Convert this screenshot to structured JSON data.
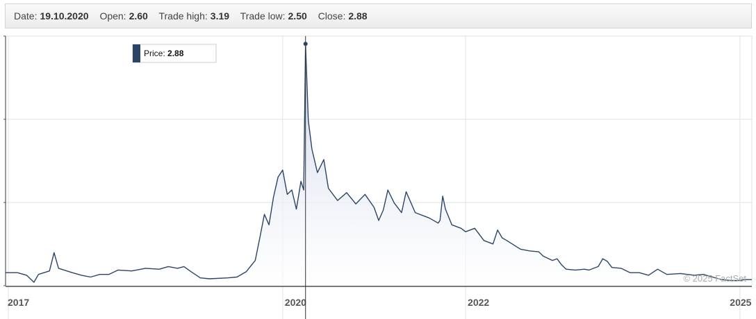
{
  "header": {
    "date_label": "Date:",
    "date_value": "19.10.2020",
    "open_label": "Open:",
    "open_value": "2.60",
    "high_label": "Trade high:",
    "high_value": "3.19",
    "low_label": "Trade low:",
    "low_value": "2.50",
    "close_label": "Close:",
    "close_value": "2.88"
  },
  "tooltip": {
    "label": "Price:",
    "value": "2.88"
  },
  "credit": "© 2025 FactSet",
  "colors": {
    "line": "#2b4466",
    "fill_top": "#c9d3e8",
    "fill_bottom": "#ffffff",
    "tooltip_swatch": "#2b4466",
    "grid": "#e2e2e2"
  },
  "chart_data": {
    "type": "area",
    "title": "",
    "xlabel": "",
    "ylabel": "",
    "x_ticks": [
      "2017",
      "2020",
      "2022",
      "2025"
    ],
    "x_tick_values": [
      2017.0,
      2020.0,
      2022.0,
      2025.0
    ],
    "xlim": [
      2016.97,
      2025.13
    ],
    "ylim": [
      0.1,
      2.97
    ],
    "grid": true,
    "legend": "none",
    "crosshair_x": 2020.25,
    "series": [
      {
        "points": [
          [
            2016.97,
            0.25
          ],
          [
            2017.1,
            0.25
          ],
          [
            2017.2,
            0.22
          ],
          [
            2017.28,
            0.14
          ],
          [
            2017.33,
            0.23
          ],
          [
            2017.45,
            0.27
          ],
          [
            2017.5,
            0.48
          ],
          [
            2017.55,
            0.3
          ],
          [
            2017.7,
            0.25
          ],
          [
            2017.8,
            0.22
          ],
          [
            2017.9,
            0.2
          ],
          [
            2018.0,
            0.23
          ],
          [
            2018.1,
            0.23
          ],
          [
            2018.2,
            0.28
          ],
          [
            2018.35,
            0.27
          ],
          [
            2018.5,
            0.3
          ],
          [
            2018.65,
            0.29
          ],
          [
            2018.75,
            0.32
          ],
          [
            2018.85,
            0.3
          ],
          [
            2018.92,
            0.32
          ],
          [
            2019.0,
            0.26
          ],
          [
            2019.1,
            0.19
          ],
          [
            2019.2,
            0.18
          ],
          [
            2019.4,
            0.19
          ],
          [
            2019.5,
            0.2
          ],
          [
            2019.6,
            0.26
          ],
          [
            2019.7,
            0.39
          ],
          [
            2019.75,
            0.65
          ],
          [
            2019.8,
            0.92
          ],
          [
            2019.85,
            0.8
          ],
          [
            2019.9,
            1.12
          ],
          [
            2019.95,
            1.35
          ],
          [
            2020.0,
            1.43
          ],
          [
            2020.05,
            1.15
          ],
          [
            2020.1,
            1.2
          ],
          [
            2020.15,
            0.98
          ],
          [
            2020.2,
            1.3
          ],
          [
            2020.23,
            1.2
          ],
          [
            2020.25,
            2.88
          ],
          [
            2020.28,
            2.0
          ],
          [
            2020.32,
            1.67
          ],
          [
            2020.38,
            1.4
          ],
          [
            2020.45,
            1.55
          ],
          [
            2020.5,
            1.22
          ],
          [
            2020.6,
            1.08
          ],
          [
            2020.7,
            1.17
          ],
          [
            2020.8,
            1.04
          ],
          [
            2020.9,
            1.15
          ],
          [
            2021.0,
            1.0
          ],
          [
            2021.05,
            0.85
          ],
          [
            2021.1,
            0.97
          ],
          [
            2021.15,
            1.2
          ],
          [
            2021.22,
            1.05
          ],
          [
            2021.3,
            0.94
          ],
          [
            2021.35,
            1.18
          ],
          [
            2021.45,
            0.94
          ],
          [
            2021.6,
            0.88
          ],
          [
            2021.7,
            0.82
          ],
          [
            2021.72,
            0.85
          ],
          [
            2021.75,
            1.13
          ],
          [
            2021.78,
            0.98
          ],
          [
            2021.85,
            0.8
          ],
          [
            2021.95,
            0.76
          ],
          [
            2022.0,
            0.72
          ],
          [
            2022.1,
            0.76
          ],
          [
            2022.2,
            0.62
          ],
          [
            2022.3,
            0.58
          ],
          [
            2022.35,
            0.74
          ],
          [
            2022.4,
            0.65
          ],
          [
            2022.45,
            0.62
          ],
          [
            2022.6,
            0.52
          ],
          [
            2022.7,
            0.5
          ],
          [
            2022.8,
            0.49
          ],
          [
            2022.85,
            0.44
          ],
          [
            2022.95,
            0.39
          ],
          [
            2023.0,
            0.41
          ],
          [
            2023.05,
            0.34
          ],
          [
            2023.1,
            0.29
          ],
          [
            2023.2,
            0.28
          ],
          [
            2023.3,
            0.29
          ],
          [
            2023.35,
            0.28
          ],
          [
            2023.45,
            0.32
          ],
          [
            2023.5,
            0.41
          ],
          [
            2023.55,
            0.38
          ],
          [
            2023.6,
            0.31
          ],
          [
            2023.7,
            0.3
          ],
          [
            2023.8,
            0.25
          ],
          [
            2023.9,
            0.25
          ],
          [
            2024.0,
            0.22
          ],
          [
            2024.1,
            0.29
          ],
          [
            2024.2,
            0.23
          ],
          [
            2024.35,
            0.24
          ],
          [
            2024.5,
            0.22
          ],
          [
            2024.6,
            0.23
          ],
          [
            2024.7,
            0.2
          ],
          [
            2024.8,
            0.17
          ],
          [
            2024.9,
            0.16
          ],
          [
            2025.0,
            0.16
          ],
          [
            2025.05,
            0.17
          ],
          [
            2025.1,
            0.17
          ],
          [
            2025.13,
            0.17
          ]
        ]
      }
    ]
  }
}
